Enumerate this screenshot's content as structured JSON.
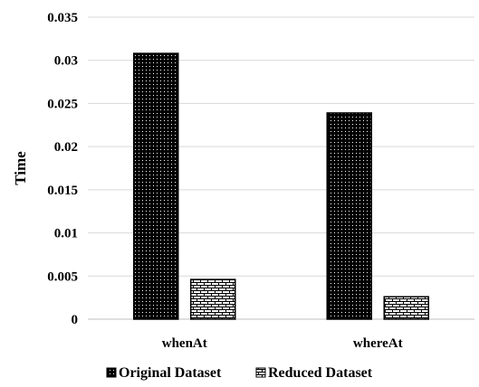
{
  "chart_data": {
    "type": "bar",
    "categories": [
      "whenAt",
      "whereAt"
    ],
    "series": [
      {
        "name": "Original Dataset",
        "values": [
          0.0308,
          0.0239
        ],
        "pattern": "dots",
        "color": "#000000"
      },
      {
        "name": "Reduced Dataset",
        "values": [
          0.0046,
          0.0026
        ],
        "pattern": "bricks",
        "color": "#000000"
      }
    ],
    "ylabel": "Time",
    "xlabel": "",
    "ylim": [
      0,
      0.035
    ],
    "yticks": [
      "0",
      "0.005",
      "0.01",
      "0.015",
      "0.02",
      "0.025",
      "0.03",
      "0.035"
    ],
    "grid": true,
    "legend_position": "bottom"
  }
}
